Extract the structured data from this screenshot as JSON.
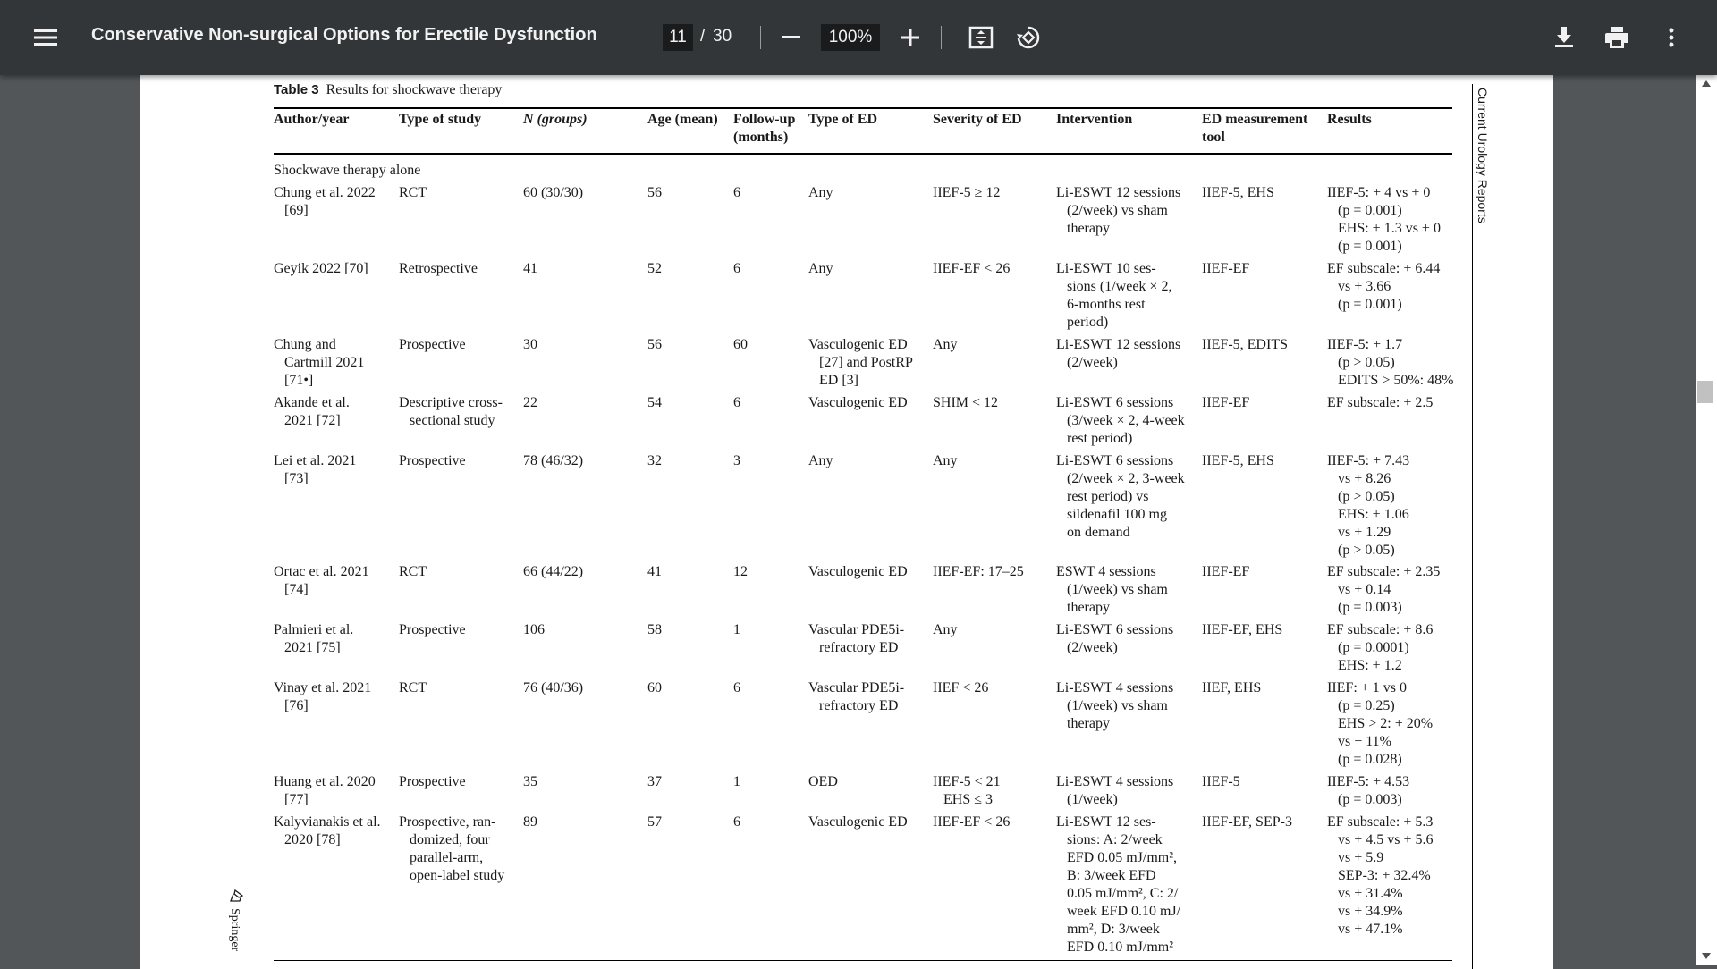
{
  "toolbar": {
    "title": "Conservative Non-surgical Options for Erectile Dysfunction",
    "current_page": "11",
    "separator": "/",
    "total_pages": "30",
    "zoom": "100%",
    "icons": [
      "menu-icon",
      "zoom-out-icon",
      "zoom-in-icon",
      "fit-page-icon",
      "rotate-icon",
      "download-icon",
      "print-icon",
      "more-options-icon"
    ]
  },
  "document": {
    "table_label": "Table 3",
    "table_caption": "Results for shockwave therapy",
    "journal_name": "Current Urology Reports",
    "publisher": "Springer",
    "section_label": "Shockwave therapy alone",
    "headers": {
      "author": "Author/year",
      "type": "Type of study",
      "n": "N (groups)",
      "age": "Age (mean)",
      "followup1": "Follow-up",
      "followup2": "(months)",
      "ed_type": "Type of ED",
      "severity": "Severity of ED",
      "intervention": "Intervention",
      "tool1": "ED measurement",
      "tool2": "tool",
      "results": "Results"
    },
    "rows": [
      {
        "author": [
          "Chung et al. 2022",
          "[69]"
        ],
        "type": [
          "RCT"
        ],
        "n": "60 (30/30)",
        "age": "56",
        "followup": "6",
        "ed_type": [
          "Any"
        ],
        "severity": [
          "IIEF-5 ≥ 12"
        ],
        "intervention": [
          "Li-ESWT 12 sessions",
          "(2/week) vs sham",
          "therapy"
        ],
        "tool": "IIEF-5, EHS",
        "results": [
          "IIEF-5: + 4 vs + 0",
          "(p = 0.001)",
          "EHS: + 1.3 vs + 0",
          "(p = 0.001)"
        ]
      },
      {
        "author": [
          "Geyik 2022 [70]"
        ],
        "type": [
          "Retrospective"
        ],
        "n": "41",
        "age": "52",
        "followup": "6",
        "ed_type": [
          "Any"
        ],
        "severity": [
          "IIEF-EF < 26"
        ],
        "intervention": [
          "Li-ESWT 10 ses-",
          "sions (1/week × 2,",
          "6-months rest",
          "period)"
        ],
        "tool": "IIEF-EF",
        "results": [
          "EF subscale: + 6.44",
          "vs + 3.66",
          "(p = 0.001)"
        ]
      },
      {
        "author": [
          "Chung and",
          "Cartmill 2021",
          "[71•]"
        ],
        "type": [
          "Prospective"
        ],
        "n": "30",
        "age": "56",
        "followup": "60",
        "ed_type": [
          "Vasculogenic ED",
          "[27] and PostRP",
          "ED [3]"
        ],
        "severity": [
          "Any"
        ],
        "intervention": [
          "Li-ESWT 12 sessions",
          "(2/week)"
        ],
        "tool": "IIEF-5, EDITS",
        "results": [
          "IIEF-5: + 1.7",
          "(p > 0.05)",
          "EDITS > 50%: 48%"
        ]
      },
      {
        "author": [
          "Akande et al.",
          "2021 [72]"
        ],
        "type": [
          "Descriptive cross-",
          "sectional study"
        ],
        "n": "22",
        "age": "54",
        "followup": "6",
        "ed_type": [
          "Vasculogenic ED"
        ],
        "severity": [
          "SHIM < 12"
        ],
        "intervention": [
          "Li-ESWT 6 sessions",
          "(3/week × 2, 4-week",
          "rest period)"
        ],
        "tool": "IIEF-EF",
        "results": [
          "EF subscale: + 2.5"
        ]
      },
      {
        "author": [
          "Lei et al. 2021",
          "[73]"
        ],
        "type": [
          "Prospective"
        ],
        "n": "78 (46/32)",
        "age": "32",
        "followup": "3",
        "ed_type": [
          "Any"
        ],
        "severity": [
          "Any"
        ],
        "intervention": [
          "Li-ESWT 6 sessions",
          "(2/week × 2, 3-week",
          "rest period) vs",
          "sildenafil 100 mg",
          "on demand"
        ],
        "tool": "IIEF-5, EHS",
        "results": [
          "IIEF-5: + 7.43",
          "vs + 8.26",
          "(p > 0.05)",
          "EHS: + 1.06",
          "vs + 1.29",
          "(p > 0.05)"
        ]
      },
      {
        "author": [
          "Ortac et al. 2021",
          "[74]"
        ],
        "type": [
          "RCT"
        ],
        "n": "66 (44/22)",
        "age": "41",
        "followup": "12",
        "ed_type": [
          "Vasculogenic ED"
        ],
        "severity": [
          "IIEF-EF: 17–25"
        ],
        "intervention": [
          "ESWT 4 sessions",
          "(1/week) vs sham",
          "therapy"
        ],
        "tool": "IIEF-EF",
        "results": [
          "EF subscale: + 2.35",
          "vs + 0.14",
          "(p = 0.003)"
        ]
      },
      {
        "author": [
          "Palmieri et al.",
          "2021 [75]"
        ],
        "type": [
          "Prospective"
        ],
        "n": "106",
        "age": "58",
        "followup": "1",
        "ed_type": [
          "Vascular PDE5i-",
          "refractory ED"
        ],
        "severity": [
          "Any"
        ],
        "intervention": [
          "Li-ESWT 6 sessions",
          "(2/week)"
        ],
        "tool": "IIEF-EF, EHS",
        "results": [
          "EF subscale: + 8.6",
          "(p = 0.0001)",
          "EHS: + 1.2"
        ]
      },
      {
        "author": [
          "Vinay et al. 2021",
          "[76]"
        ],
        "type": [
          "RCT"
        ],
        "n": "76 (40/36)",
        "age": "60",
        "followup": "6",
        "ed_type": [
          "Vascular PDE5i-",
          "refractory ED"
        ],
        "severity": [
          "IIEF < 26"
        ],
        "intervention": [
          "Li-ESWT 4 sessions",
          "(1/week) vs sham",
          "therapy"
        ],
        "tool": "IIEF, EHS",
        "results": [
          "IIEF: + 1 vs 0",
          "(p = 0.25)",
          "EHS > 2: + 20%",
          "vs − 11%",
          "(p = 0.028)"
        ]
      },
      {
        "author": [
          "Huang et al. 2020",
          "[77]"
        ],
        "type": [
          "Prospective"
        ],
        "n": "35",
        "age": "37",
        "followup": "1",
        "ed_type": [
          "OED"
        ],
        "severity": [
          "IIEF-5 < 21",
          "EHS ≤ 3"
        ],
        "intervention": [
          "Li-ESWT 4 sessions",
          "(1/week)"
        ],
        "tool": "IIEF-5",
        "results": [
          "IIEF-5: + 4.53",
          "(p = 0.003)"
        ]
      },
      {
        "author": [
          "Kalyvianakis et al.",
          "2020 [78]"
        ],
        "type": [
          "Prospective, ran-",
          "domized, four",
          "parallel-arm,",
          "open-label study"
        ],
        "n": "89",
        "age": "57",
        "followup": "6",
        "ed_type": [
          "Vasculogenic ED"
        ],
        "severity": [
          "IIEF-EF < 26"
        ],
        "intervention": [
          "Li-ESWT 12 ses-",
          "sions: A: 2/week",
          "EFD 0.05 mJ/mm²,",
          "B: 3/week EFD",
          "0.05 mJ/mm², C: 2/",
          "week EFD 0.10 mJ/",
          "mm², D: 3/week",
          "EFD 0.10 mJ/mm²"
        ],
        "tool": "IIEF-EF, SEP-3",
        "results": [
          "EF subscale: + 5.3",
          "vs + 4.5 vs + 5.6",
          "vs + 5.9",
          "SEP-3: + 32.4%",
          "vs + 31.4%",
          "vs + 34.9%",
          "vs + 47.1%"
        ]
      }
    ]
  }
}
